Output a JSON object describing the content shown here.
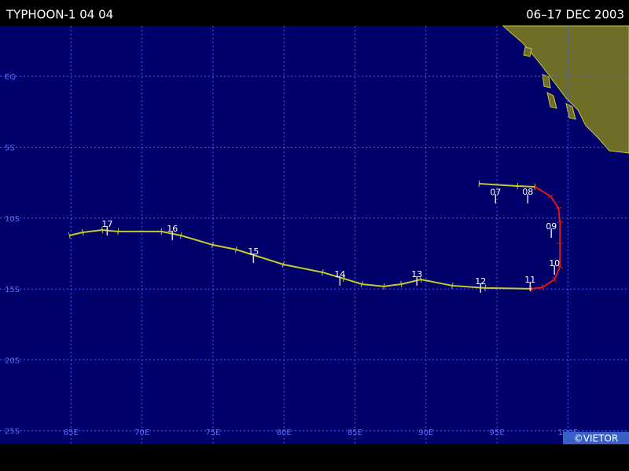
{
  "map": {
    "title": "TYPHOON-1 04 04",
    "dates": "06–17 DEC 2003",
    "credit": "©VIETOR",
    "xlim": [
      60,
      104.3
    ],
    "ylim": [
      -25.9,
      3.55
    ],
    "xticks": [
      {
        "value": 65,
        "label": "65E"
      },
      {
        "value": 70,
        "label": "70E"
      },
      {
        "value": 75,
        "label": "75E"
      },
      {
        "value": 80,
        "label": "80E"
      },
      {
        "value": 85,
        "label": "85E"
      },
      {
        "value": 90,
        "label": "90E"
      },
      {
        "value": 95,
        "label": "95E"
      },
      {
        "value": 100,
        "label": "100E"
      }
    ],
    "yticks": [
      {
        "value": 0,
        "label": "EQ"
      },
      {
        "value": -5,
        "label": "5S"
      },
      {
        "value": -10,
        "label": "10S"
      },
      {
        "value": -15,
        "label": "15S"
      },
      {
        "value": -20,
        "label": "20S"
      },
      {
        "value": -25,
        "label": "25S"
      }
    ],
    "track": [
      {
        "color": "#c8c832",
        "lon": [
          93.74,
          96.45,
          97.67
        ],
        "lat": [
          -7.58,
          -7.74,
          -7.8
        ]
      },
      {
        "color": "#e01818",
        "lon": [
          97.67,
          98.78,
          99.33,
          99.44,
          99.44,
          99.44,
          99.05,
          98.22,
          97.45
        ],
        "lat": [
          -7.8,
          -8.46,
          -9.29,
          -10.29,
          -11.78,
          -13.44,
          -14.33,
          -14.88,
          -14.99
        ]
      },
      {
        "color": "#c8c832",
        "lon": [
          97.45,
          94.18,
          91.86,
          89.64,
          88.26,
          87.04,
          85.49,
          84.22,
          82.72,
          79.95,
          76.63,
          74.97,
          72.75,
          71.37,
          68.32,
          67.21,
          65.83,
          64.89
        ],
        "lat": [
          -14.99,
          -14.93,
          -14.77,
          -14.33,
          -14.66,
          -14.82,
          -14.66,
          -14.27,
          -13.83,
          -13.27,
          -12.22,
          -11.89,
          -11.23,
          -10.95,
          -10.95,
          -10.84,
          -11.01,
          -11.23
        ]
      }
    ],
    "days": [
      {
        "label": "07",
        "lon": 94.9,
        "lat": -8.2
      },
      {
        "label": "08",
        "lon": 97.17,
        "lat": -8.19
      },
      {
        "label": "09",
        "lon": 98.83,
        "lat": -10.62
      },
      {
        "label": "10",
        "lon": 99.05,
        "lat": -13.22
      },
      {
        "label": "11",
        "lon": 97.34,
        "lat": -14.38
      },
      {
        "label": "12",
        "lon": 93.85,
        "lat": -14.49
      },
      {
        "label": "13",
        "lon": 89.36,
        "lat": -13.99
      },
      {
        "label": "14",
        "lon": 83.94,
        "lat": -13.99
      },
      {
        "label": "15",
        "lon": 77.85,
        "lat": -12.39
      },
      {
        "label": "16",
        "lon": 72.14,
        "lat": -10.79
      },
      {
        "label": "17",
        "lon": 67.55,
        "lat": -10.45
      }
    ]
  }
}
